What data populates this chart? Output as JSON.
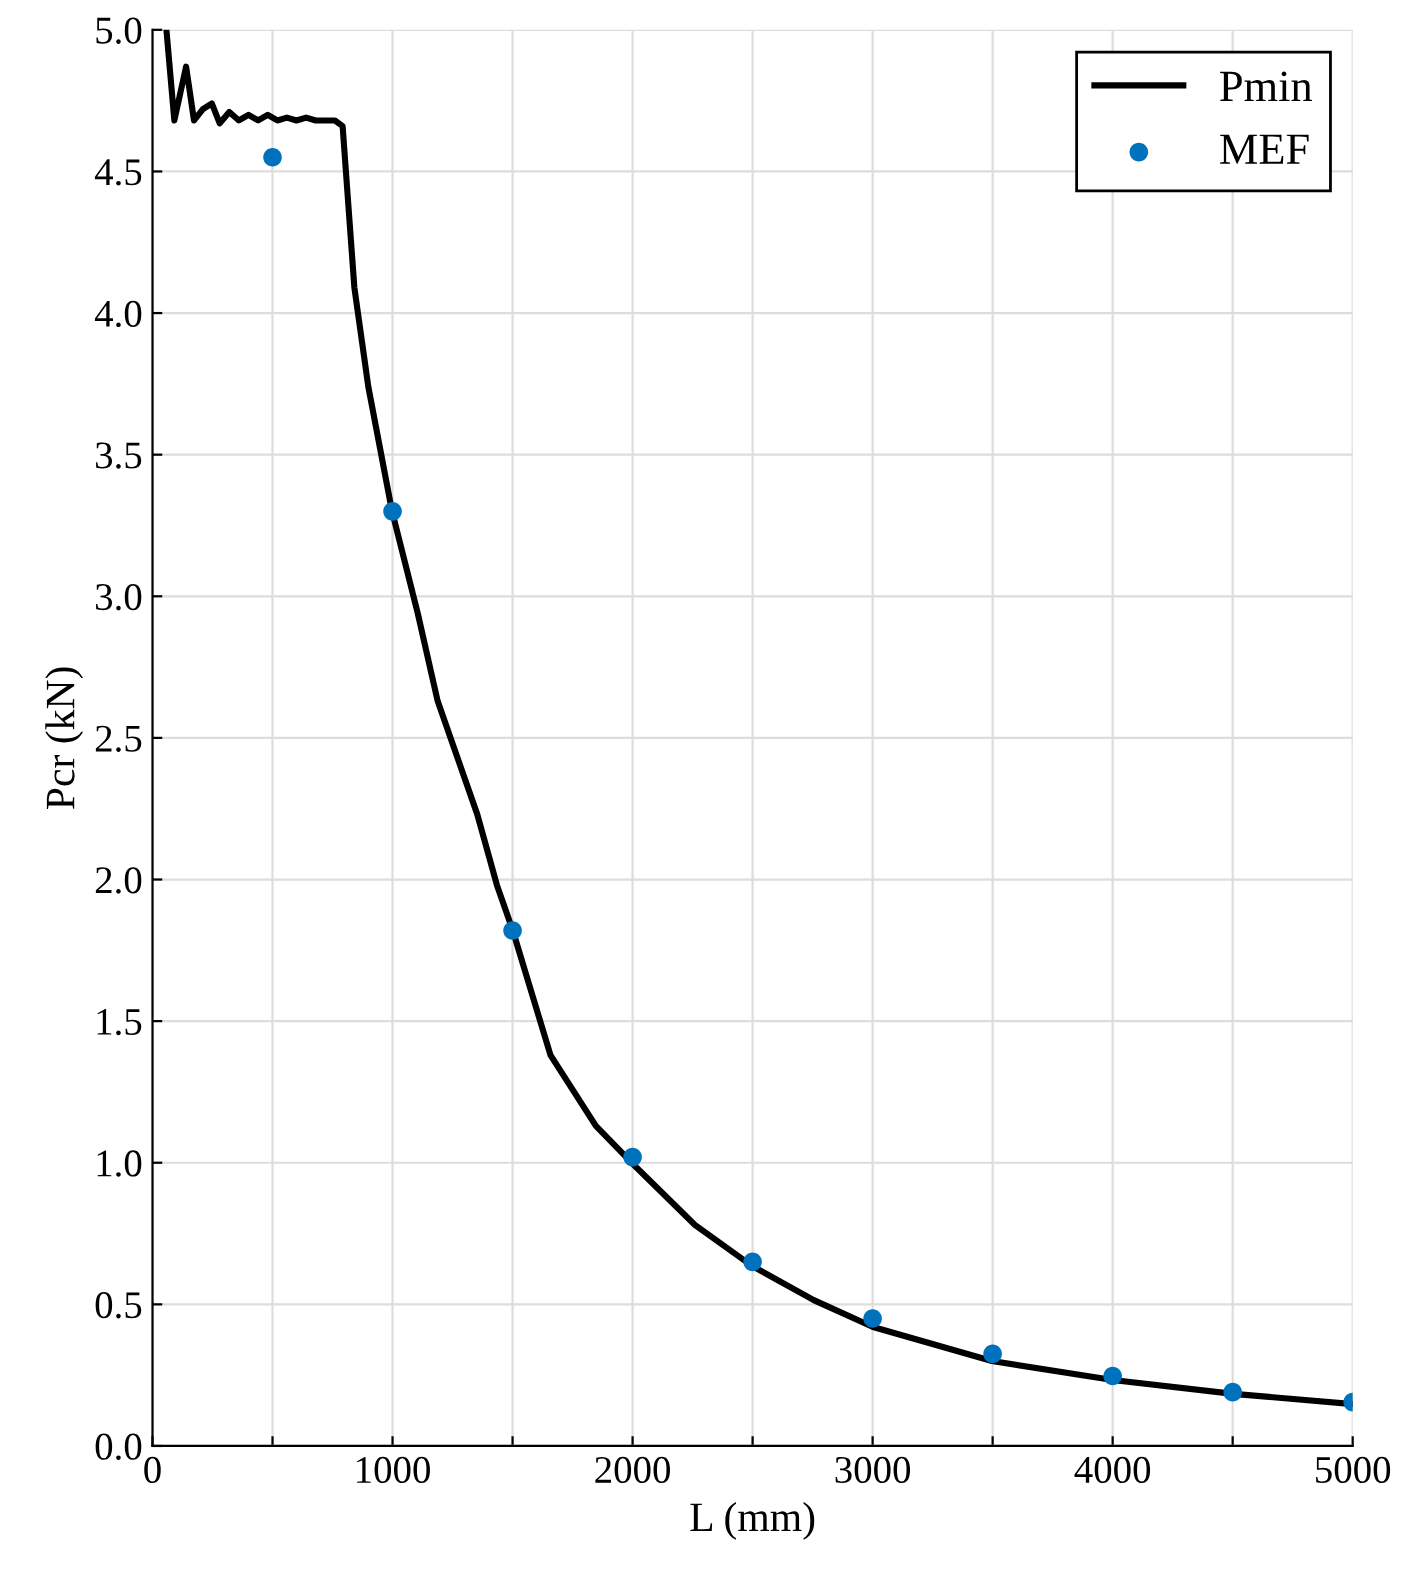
{
  "chart_data": {
    "type": "line",
    "xlabel": "L (mm)",
    "ylabel": "Pcr (kN)",
    "legend": "top right",
    "grid": true,
    "xlim": [
      0,
      5000
    ],
    "ylim": [
      0,
      5
    ],
    "xticks": [
      0,
      {
        "value": 500,
        "label": null
      },
      1000,
      {
        "value": 1500,
        "label": null
      },
      2000,
      {
        "value": 2500,
        "label": null
      },
      3000,
      {
        "value": 3500,
        "label": null
      },
      4000,
      {
        "value": 4500,
        "label": null
      },
      5000
    ],
    "yticks": [
      {
        "value": 0,
        "label": "0.0"
      },
      {
        "value": 0.5,
        "label": "0.5"
      },
      {
        "value": 1,
        "label": "1.0"
      },
      {
        "value": 1.5,
        "label": "1.5"
      },
      {
        "value": 2,
        "label": "2.0"
      },
      {
        "value": 2.5,
        "label": "2.5"
      },
      {
        "value": 3,
        "label": "3.0"
      },
      {
        "value": 3.5,
        "label": "3.5"
      },
      {
        "value": 4,
        "label": "4.0"
      },
      {
        "value": 4.5,
        "label": "4.5"
      },
      {
        "value": 5,
        "label": "5.0"
      }
    ],
    "series": [
      {
        "name": "Pmin",
        "color": "#000000",
        "marker": "none",
        "line_style": "solid",
        "x": [
          58,
          91,
          140,
          173,
          210,
          247,
          280,
          320,
          360,
          400,
          440,
          480,
          520,
          560,
          600,
          640,
          680,
          720,
          760,
          792,
          841,
          899,
          998,
          1105,
          1188,
          1353,
          1435,
          1501,
          1658,
          1847,
          1996,
          2260,
          2499,
          2755,
          3002,
          3497,
          4000,
          4503,
          5000
        ],
        "values": [
          5.0,
          4.68,
          4.87,
          4.68,
          4.72,
          4.74,
          4.67,
          4.71,
          4.68,
          4.7,
          4.68,
          4.7,
          4.68,
          4.69,
          4.68,
          4.69,
          4.68,
          4.68,
          4.68,
          4.66,
          4.09,
          3.74,
          3.3,
          2.94,
          2.63,
          2.23,
          1.98,
          1.82,
          1.38,
          1.13,
          1.0,
          0.78,
          0.635,
          0.515,
          0.42,
          0.3,
          0.233,
          0.184,
          0.148
        ]
      },
      {
        "name": "MEF",
        "type": "scatter",
        "color": "#0072bd",
        "marker": "circle",
        "x": [
          500,
          1000,
          1500,
          2000,
          2500,
          3000,
          3500,
          4000,
          4500,
          5000
        ],
        "values": [
          4.55,
          3.3,
          1.82,
          1.02,
          0.65,
          0.45,
          0.325,
          0.247,
          0.19,
          0.155
        ]
      }
    ]
  }
}
